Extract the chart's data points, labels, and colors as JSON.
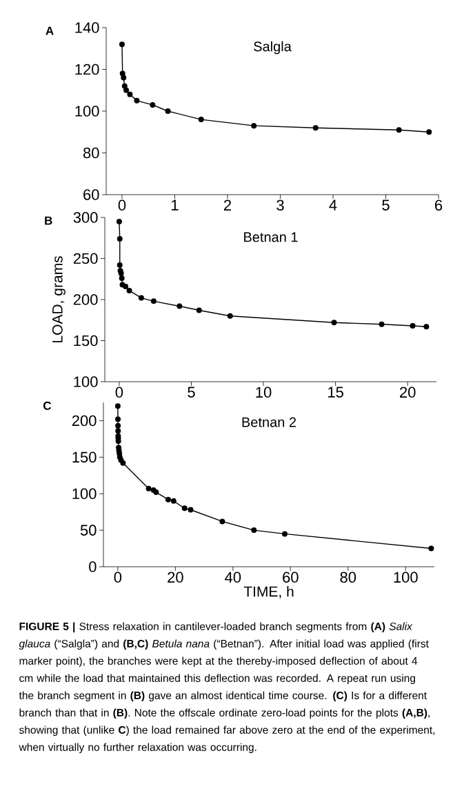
{
  "chart_data": [
    {
      "type": "line",
      "title": "Salgla",
      "annotations": [
        "A"
      ],
      "marker": "circle",
      "color": "#000000",
      "x": [
        0,
        0.01,
        0.03,
        0.05,
        0.08,
        0.15,
        0.28,
        0.58,
        0.87,
        1.5,
        2.5,
        3.67,
        5.25,
        5.82
      ],
      "values": [
        132,
        118,
        116,
        112,
        110,
        108,
        105,
        103,
        100,
        96,
        93,
        92,
        91,
        90
      ],
      "xlim": [
        -0.3,
        6
      ],
      "ylim": [
        60,
        140
      ],
      "xticks": [
        0,
        1,
        2,
        3,
        4,
        5,
        6
      ],
      "yticks": [
        60,
        80,
        100,
        120,
        140
      ]
    },
    {
      "type": "line",
      "title": "Betnan 1",
      "ylabel": "LOAD, grams",
      "annotations": [
        "B"
      ],
      "marker": "circle",
      "color": "#000000",
      "x": [
        0,
        0.04,
        0.04,
        0.08,
        0.13,
        0.18,
        0.22,
        0.44,
        0.7,
        1.53,
        2.39,
        4.18,
        5.54,
        7.69,
        14.9,
        18.2,
        20.35,
        21.3
      ],
      "values": [
        295,
        274,
        242,
        235,
        232,
        226,
        218,
        216,
        211,
        202,
        198,
        192,
        187,
        180,
        172,
        170,
        168,
        167
      ],
      "xlim": [
        -1,
        22
      ],
      "ylim": [
        100,
        300
      ],
      "xticks": [
        0,
        5,
        10,
        15,
        20
      ],
      "yticks": [
        100,
        150,
        200,
        250,
        300
      ]
    },
    {
      "type": "line",
      "title": "Betnan 2",
      "xlabel": "TIME, h",
      "marker": "circle",
      "color": "#000000",
      "annotations": [
        "C",
        "**FIGURE 5 |** Stress relaxation in cantilever-loaded branch segments from **(A)** *Salix glauca* (“Salgla”) and **(B,C)** *Betula nana* (“Betnan”). After initial load was applied (first marker point), the branches were kept at the thereby-imposed deflection of about 4 cm while the load that maintained this deflection was recorded. A repeat run using the branch segment in **(B)** gave an almost identical time course. **(C)** Is for a different branch than that in **(B)**. Note the offscale ordinate zero-load points for the plots **(A,B)**, showing that (unlike **C**) the load remained far above zero at the end of the experiment, when virtually no further relaxation was occurring."
      ],
      "x": [
        0,
        0.03,
        0.06,
        0.09,
        0.12,
        0.15,
        0.18,
        0.3,
        0.4,
        0.55,
        0.7,
        1.1,
        1.8,
        10.7,
        12.4,
        13.3,
        17.5,
        19.4,
        23.2,
        25.3,
        36.3,
        47.3,
        58,
        108.9
      ],
      "values": [
        220,
        202,
        193,
        186,
        179,
        176,
        172,
        163,
        159,
        155,
        150,
        146,
        142,
        107,
        105,
        102,
        92,
        90,
        80,
        78,
        62,
        50,
        45,
        25
      ],
      "xlim": [
        -5,
        110
      ],
      "ylim": [
        0,
        225
      ],
      "xticks": [
        0,
        20,
        40,
        60,
        80,
        100
      ],
      "yticks": [
        0,
        50,
        100,
        150,
        200
      ]
    }
  ]
}
